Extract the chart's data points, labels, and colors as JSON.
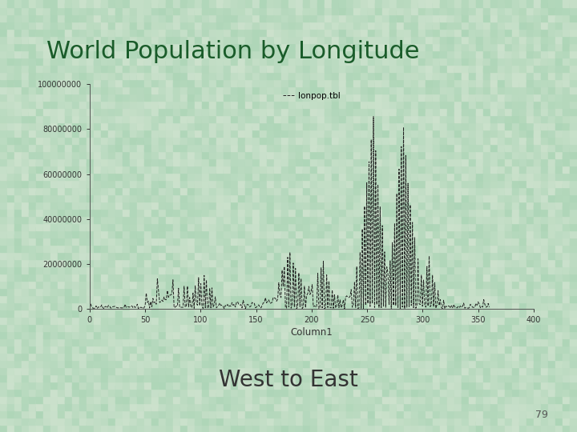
{
  "title": "World Population by Longitude",
  "subtitle": "West to East",
  "page_number": "79",
  "plot_title": "lonpop.tbl",
  "xlabel": "Column1",
  "ylabel": "",
  "xlim": [
    0,
    400
  ],
  "ylim": [
    0,
    100000000
  ],
  "yticks": [
    0,
    20000000,
    40000000,
    60000000,
    80000000,
    100000000
  ],
  "xticks": [
    0,
    50,
    100,
    150,
    200,
    250,
    300,
    350,
    400
  ],
  "title_color": "#1a5c2a",
  "subtitle_color": "#333333",
  "line_color": "#222222",
  "page_color": "#555555"
}
